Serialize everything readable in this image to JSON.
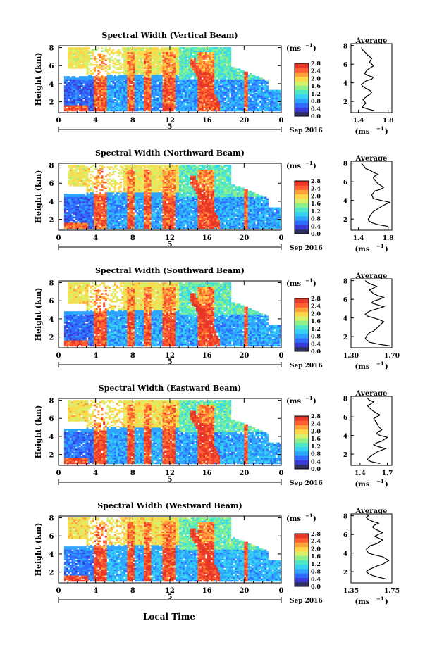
{
  "figure": {
    "xlabel": "Local Time",
    "date_label": "Sep 2016",
    "day_label": "5",
    "ylabel": "Height (km)",
    "unit_label": "(ms",
    "unit_exp": "−1",
    "avg_title": "Average",
    "avg_unit": "(ms",
    "avg_unit_exp": "−1",
    "avg_unit_close": ")",
    "colormap": [
      "#2f2f60",
      "#3a3ad6",
      "#2f6bff",
      "#2fa4ff",
      "#35d2f2",
      "#4fe7c6",
      "#8ff08a",
      "#d8f06a",
      "#ffd84a",
      "#ffa23a",
      "#ff5f33",
      "#e83628"
    ]
  },
  "chart_data": [
    {
      "type": "heatmap",
      "title": "Spectral Width (Vertical Beam)",
      "x_ticks": [
        "0",
        "4",
        "8",
        "12",
        "16",
        "20",
        "0"
      ],
      "xlim": [
        0,
        24
      ],
      "y_ticks": [
        "2",
        "4",
        "6",
        "8"
      ],
      "ylim": [
        0.8,
        8.2
      ],
      "colorbar_ticks": [
        "0.0",
        "0.4",
        "0.8",
        "1.2",
        "1.6",
        "2.0",
        "2.4",
        "2.8"
      ],
      "colorbar_range": [
        0,
        2.8
      ],
      "legend": "right"
    },
    {
      "type": "heatmap",
      "title": "Spectral Width (Northward Beam)",
      "x_ticks": [
        "0",
        "4",
        "8",
        "12",
        "16",
        "20",
        "0"
      ],
      "xlim": [
        0,
        24
      ],
      "y_ticks": [
        "2",
        "4",
        "6",
        "8"
      ],
      "ylim": [
        0.8,
        8.2
      ],
      "colorbar_ticks": [
        "0.0",
        "0.4",
        "0.8",
        "1.2",
        "1.6",
        "2.0",
        "2.4",
        "2.8"
      ],
      "colorbar_range": [
        0,
        2.8
      ],
      "legend": "right"
    },
    {
      "type": "heatmap",
      "title": "Spectral Width (Southward Beam)",
      "x_ticks": [
        "0",
        "4",
        "8",
        "12",
        "16",
        "20",
        "0"
      ],
      "xlim": [
        0,
        24
      ],
      "y_ticks": [
        "2",
        "4",
        "6",
        "8"
      ],
      "ylim": [
        0.8,
        8.2
      ],
      "colorbar_ticks": [
        "0.0",
        "0.4",
        "0.8",
        "1.2",
        "1.6",
        "2.0",
        "2.4",
        "2.8"
      ],
      "colorbar_range": [
        0,
        2.8
      ],
      "legend": "right"
    },
    {
      "type": "heatmap",
      "title": "Spectral Width (Eastward Beam)",
      "x_ticks": [
        "0",
        "4",
        "8",
        "12",
        "16",
        "20",
        "0"
      ],
      "xlim": [
        0,
        24
      ],
      "y_ticks": [
        "2",
        "4",
        "6",
        "8"
      ],
      "ylim": [
        0.8,
        8.2
      ],
      "colorbar_ticks": [
        "0.0",
        "0.4",
        "0.8",
        "1.2",
        "1.6",
        "2.0",
        "2.4",
        "2.8"
      ],
      "colorbar_range": [
        0,
        2.8
      ],
      "legend": "right"
    },
    {
      "type": "heatmap",
      "title": "Spectral Width (Westward Beam)",
      "x_ticks": [
        "0",
        "4",
        "8",
        "12",
        "16",
        "20",
        "0"
      ],
      "xlim": [
        0,
        24
      ],
      "y_ticks": [
        "2",
        "4",
        "6",
        "8"
      ],
      "ylim": [
        0.8,
        8.2
      ],
      "colorbar_ticks": [
        "0.0",
        "0.4",
        "0.8",
        "1.2",
        "1.6",
        "2.0",
        "2.4",
        "2.8"
      ],
      "colorbar_range": [
        0,
        2.8
      ],
      "legend": "right"
    },
    {
      "type": "line",
      "title": "Average",
      "x_ticks": [
        "1.4",
        "1.8"
      ],
      "xlim": [
        1.3,
        1.85
      ],
      "ylim": [
        0.8,
        8.2
      ],
      "y_ticks": [
        "2",
        "4",
        "6",
        "8"
      ],
      "x": [
        1.62,
        1.52,
        1.45,
        1.47,
        1.5,
        1.48,
        1.46,
        1.49,
        1.52,
        1.56,
        1.58,
        1.55,
        1.5,
        1.46,
        1.44,
        1.47,
        1.5,
        1.58,
        1.6,
        1.52,
        1.48,
        1.5,
        1.52,
        1.56,
        1.6,
        1.58,
        1.55,
        1.56,
        1.58,
        1.55,
        1.52,
        1.5,
        1.47,
        1.45,
        1.44
      ],
      "y": [
        1.0,
        1.2,
        1.4,
        1.6,
        1.8,
        2.0,
        2.2,
        2.4,
        2.6,
        2.8,
        3.0,
        3.2,
        3.4,
        3.6,
        3.8,
        4.0,
        4.2,
        4.4,
        4.6,
        4.8,
        5.0,
        5.2,
        5.4,
        5.6,
        5.8,
        6.0,
        6.2,
        6.4,
        6.6,
        6.8,
        7.0,
        7.2,
        7.4,
        7.6,
        7.8
      ]
    },
    {
      "type": "line",
      "title": "Average",
      "x_ticks": [
        "1.4",
        "1.8"
      ],
      "xlim": [
        1.3,
        1.85
      ],
      "ylim": [
        0.8,
        8.2
      ],
      "y_ticks": [
        "2",
        "4",
        "6",
        "8"
      ],
      "x": [
        1.8,
        1.66,
        1.58,
        1.54,
        1.53,
        1.55,
        1.56,
        1.58,
        1.6,
        1.64,
        1.72,
        1.82,
        1.7,
        1.6,
        1.58,
        1.62,
        1.7,
        1.74,
        1.7,
        1.66,
        1.64,
        1.62,
        1.6,
        1.62,
        1.66,
        1.6,
        1.56,
        1.5,
        1.48,
        1.46,
        1.44
      ],
      "y": [
        1.2,
        1.4,
        1.6,
        1.8,
        2.0,
        2.2,
        2.4,
        2.6,
        2.8,
        3.0,
        3.4,
        3.8,
        4.0,
        4.2,
        4.6,
        5.0,
        5.2,
        5.4,
        5.6,
        5.8,
        6.0,
        6.2,
        6.4,
        6.6,
        6.8,
        7.0,
        7.2,
        7.4,
        7.6,
        7.8,
        8.0
      ]
    },
    {
      "type": "line",
      "title": "Average",
      "x_ticks": [
        "1.30",
        "1.70"
      ],
      "xlim": [
        1.3,
        1.7
      ],
      "ylim": [
        0.8,
        8.2
      ],
      "y_ticks": [
        "2",
        "4",
        "6",
        "8"
      ],
      "x": [
        1.68,
        1.56,
        1.48,
        1.46,
        1.44,
        1.45,
        1.46,
        1.48,
        1.52,
        1.56,
        1.62,
        1.58,
        1.52,
        1.46,
        1.44,
        1.46,
        1.5,
        1.56,
        1.62,
        1.56,
        1.5,
        1.52,
        1.58,
        1.62,
        1.56,
        1.52,
        1.5,
        1.48,
        1.52,
        1.55,
        1.5,
        1.46,
        1.44
      ],
      "y": [
        1.0,
        1.2,
        1.4,
        1.6,
        1.8,
        2.0,
        2.2,
        2.4,
        2.6,
        3.0,
        3.6,
        3.8,
        4.0,
        4.2,
        4.4,
        4.6,
        4.8,
        5.0,
        5.2,
        5.4,
        5.6,
        5.8,
        6.0,
        6.2,
        6.4,
        6.6,
        6.8,
        7.0,
        7.2,
        7.4,
        7.6,
        7.8,
        8.0
      ]
    },
    {
      "type": "line",
      "title": "Average",
      "x_ticks": [
        "1.4",
        "1.7"
      ],
      "xlim": [
        1.3,
        1.75
      ],
      "ylim": [
        0.8,
        8.2
      ],
      "y_ticks": [
        "2",
        "4",
        "6",
        "8"
      ],
      "x": [
        1.62,
        1.52,
        1.48,
        1.49,
        1.52,
        1.55,
        1.58,
        1.63,
        1.68,
        1.6,
        1.55,
        1.58,
        1.64,
        1.7,
        1.62,
        1.58,
        1.6,
        1.64,
        1.6,
        1.58,
        1.55,
        1.58,
        1.62,
        1.58,
        1.55,
        1.52,
        1.5,
        1.48,
        1.52,
        1.55,
        1.5,
        1.48
      ],
      "y": [
        1.0,
        1.2,
        1.4,
        1.6,
        1.8,
        2.0,
        2.2,
        2.4,
        2.6,
        2.8,
        3.0,
        3.2,
        3.4,
        3.8,
        4.0,
        4.2,
        4.4,
        4.6,
        5.0,
        5.4,
        5.8,
        6.0,
        6.2,
        6.4,
        6.6,
        6.8,
        7.0,
        7.2,
        7.4,
        7.6,
        7.8,
        8.0
      ]
    },
    {
      "type": "line",
      "title": "Average",
      "x_ticks": [
        "1.35",
        "1.75"
      ],
      "xlim": [
        1.35,
        1.75
      ],
      "ylim": [
        0.8,
        8.2
      ],
      "y_ticks": [
        "2",
        "4",
        "6",
        "8"
      ],
      "x": [
        1.7,
        1.62,
        1.56,
        1.52,
        1.5,
        1.52,
        1.56,
        1.6,
        1.66,
        1.72,
        1.66,
        1.58,
        1.52,
        1.5,
        1.54,
        1.6,
        1.66,
        1.62,
        1.58,
        1.62,
        1.66,
        1.62,
        1.58,
        1.56,
        1.58,
        1.62,
        1.56,
        1.52,
        1.5,
        1.52,
        1.5
      ],
      "y": [
        1.2,
        1.4,
        1.6,
        1.8,
        2.0,
        2.2,
        2.4,
        2.6,
        2.8,
        3.2,
        3.6,
        3.8,
        4.0,
        4.4,
        4.8,
        5.0,
        5.4,
        5.6,
        5.8,
        6.0,
        6.2,
        6.4,
        6.6,
        6.8,
        7.0,
        7.2,
        7.4,
        7.6,
        7.8,
        8.0,
        8.2
      ]
    }
  ]
}
